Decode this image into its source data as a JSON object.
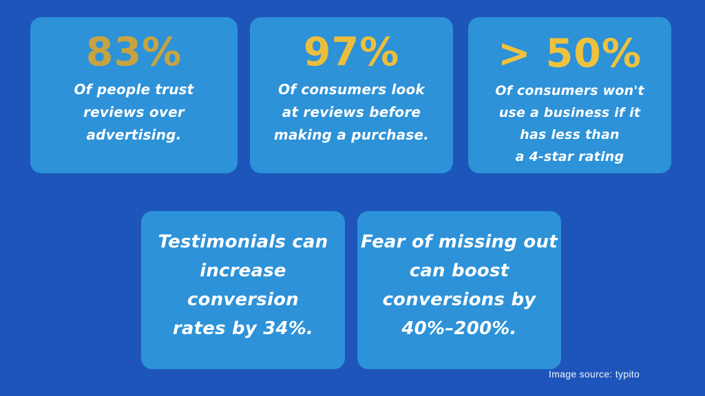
{
  "page": {
    "background_color": "#1e55bb",
    "card_color": "#2d92d8",
    "text_color": "#ffffff"
  },
  "cards": {
    "top": [
      {
        "stat": "83%",
        "stat_color": "#c7a440",
        "lines": [
          "Of people trust",
          "reviews over",
          "advertising."
        ]
      },
      {
        "stat": "97%",
        "stat_color": "#ecbe3e",
        "lines": [
          "Of consumers look",
          "at reviews before",
          "making a purchase."
        ]
      },
      {
        "stat": "> 50%",
        "stat_color": "#eec23f",
        "lines": [
          "Of consumers won't",
          "use a business if it",
          "has less than",
          "a 4-star rating"
        ]
      }
    ],
    "bottom": [
      {
        "lines": [
          "Testimonials can",
          "increase conversion",
          "rates by 34%."
        ]
      },
      {
        "lines": [
          "Fear of missing out",
          "can boost",
          "conversions by",
          "40%–200%."
        ]
      }
    ]
  },
  "footer": {
    "source_credit": "Image source: typito"
  },
  "chart_data": {
    "type": "table",
    "title": "Review & testimonial statistics",
    "stats": [
      {
        "value": "83%",
        "label": "Of people trust reviews over advertising."
      },
      {
        "value": "97%",
        "label": "Of consumers look at reviews before making a purchase."
      },
      {
        "value": ">50%",
        "label": "Of consumers won't use a business if it has less than a 4-star rating"
      },
      {
        "value": "34%",
        "label": "Testimonials can increase conversion rates by 34%."
      },
      {
        "value": "40%-200%",
        "label": "Fear of missing out can boost conversions by 40%-200%."
      }
    ],
    "source": "Image source: typito"
  }
}
